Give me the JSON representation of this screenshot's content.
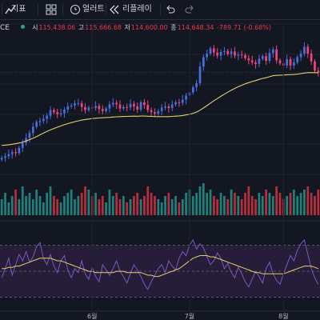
{
  "toolbar": {
    "indicators_label": "지표",
    "alert_label": "얼러트",
    "replay_label": "리플레이"
  },
  "legend": {
    "symbol": "CE",
    "open_label": "시",
    "open": "115,438.06",
    "high_label": "고",
    "high": "115,666.68",
    "low_label": "저",
    "low": "114,600.00",
    "close_label": "종",
    "close": "114,648.34",
    "change": "-789.71 (-0.68%)"
  },
  "colors": {
    "background": "#131722",
    "up": "#26a69a",
    "down": "#f23645",
    "candle_up": "#4a6ee0",
    "candle_down": "#f0467a",
    "ma": "#e6cf6b",
    "rsi": "#7e57c2",
    "rsi_ma": "#e6cf6b",
    "rsi_band": "#2a1f3d",
    "grid": "#1e222d"
  },
  "chart_data": [
    {
      "type": "candlestick",
      "title": "",
      "x_tick_labels": [
        "6월",
        "7월",
        "8월"
      ],
      "price_close": [
        98200,
        98500,
        98900,
        99300,
        99100,
        100100,
        101100,
        102000,
        103000,
        104200,
        105100,
        105300,
        105700,
        106300,
        107400,
        107000,
        106600,
        106800,
        107500,
        108100,
        108300,
        108700,
        108700,
        108000,
        107400,
        107900,
        107800,
        108200,
        107600,
        107200,
        107700,
        108500,
        108800,
        108500,
        107700,
        108000,
        107900,
        108600,
        108100,
        107500,
        108900,
        108400,
        107400,
        107000,
        106700,
        107200,
        107900,
        108100,
        107800,
        108500,
        108900,
        108800,
        109400,
        110200,
        110800,
        111800,
        112600,
        115800,
        117600,
        118300,
        119300,
        118500,
        117900,
        118600,
        118800,
        118200,
        118700,
        117900,
        118100,
        118000,
        117400,
        117000,
        116600,
        116300,
        117300,
        117800,
        116900,
        118400,
        119100,
        117000,
        116400,
        116000,
        117200,
        116000,
        116600,
        117600,
        118300,
        119600,
        118300,
        116800,
        115000,
        114650
      ],
      "ma_line": [
        100600,
        100650,
        100720,
        100820,
        100920,
        101050,
        101230,
        101450,
        101700,
        101980,
        102300,
        102630,
        102960,
        103280,
        103580,
        103850,
        104100,
        104350,
        104580,
        104790,
        104980,
        105160,
        105320,
        105470,
        105580,
        105680,
        105760,
        105830,
        105880,
        105920,
        105960,
        106000,
        106060,
        106110,
        106140,
        106170,
        106190,
        106220,
        106230,
        106220,
        106240,
        106240,
        106220,
        106190,
        106150,
        106130,
        106130,
        106140,
        106140,
        106180,
        106230,
        106280,
        106360,
        106470,
        106590,
        106780,
        107010,
        107390,
        107810,
        108270,
        108750,
        109200,
        109620,
        110050,
        110470,
        110860,
        111250,
        111580,
        111900,
        112190,
        112460,
        112700,
        112910,
        113100,
        113310,
        113510,
        113650,
        113840,
        114030,
        114100,
        114140,
        114160,
        114220,
        114230,
        114260,
        114330,
        114420,
        114540,
        114620,
        114640,
        114620,
        114580
      ],
      "volume": [
        5,
        7,
        4,
        6,
        8,
        5,
        9,
        6,
        7,
        5,
        8,
        6,
        4,
        7,
        9,
        6,
        5,
        4,
        6,
        7,
        8,
        5,
        6,
        7,
        9,
        8,
        6,
        7,
        5,
        6,
        4,
        8,
        6,
        7,
        5,
        6,
        4,
        5,
        6,
        7,
        5,
        6,
        9,
        7,
        6,
        5,
        4,
        6,
        7,
        5,
        6,
        4,
        5,
        7,
        8,
        6,
        7,
        9,
        10,
        7,
        8,
        6,
        5,
        7,
        6,
        5,
        8,
        7,
        6,
        5,
        7,
        9,
        6,
        5,
        7,
        6,
        8,
        7,
        6,
        9,
        7,
        5,
        6,
        7,
        8,
        6,
        7,
        8,
        9,
        7,
        6,
        8
      ],
      "ylim": [
        95000,
        124000
      ]
    },
    {
      "type": "line",
      "title": "",
      "series": [
        {
          "values": [
            45,
            52,
            60,
            47,
            55,
            63,
            58,
            65,
            57,
            61,
            69,
            72,
            60,
            55,
            63,
            54,
            49,
            58,
            62,
            51,
            45,
            52,
            49,
            58,
            48,
            44,
            53,
            46,
            42,
            55,
            51,
            47,
            52,
            58,
            50,
            46,
            41,
            48,
            55,
            51,
            46,
            40,
            36,
            42,
            47,
            52,
            55,
            49,
            58,
            54,
            51,
            60,
            65,
            62,
            70,
            74,
            67,
            71,
            68,
            61,
            55,
            58,
            64,
            60,
            52,
            56,
            49,
            45,
            53,
            48,
            42,
            38,
            44,
            50,
            46,
            41,
            52,
            57,
            48,
            43,
            40,
            48,
            55,
            62,
            58,
            66,
            71,
            74,
            63,
            52,
            45,
            40
          ]
        },
        {
          "values": [
            52,
            52,
            53,
            53,
            54,
            54,
            55,
            56,
            57,
            58,
            59,
            60,
            60,
            60,
            60,
            59,
            58,
            58,
            57,
            56,
            55,
            54,
            53,
            52,
            51,
            50,
            50,
            49,
            49,
            49,
            49,
            49,
            49,
            50,
            50,
            50,
            49,
            49,
            49,
            49,
            49,
            48,
            47,
            47,
            46,
            46,
            47,
            48,
            49,
            50,
            51,
            52,
            54,
            56,
            58,
            60,
            61,
            62,
            62,
            62,
            61,
            61,
            60,
            59,
            58,
            57,
            56,
            55,
            54,
            53,
            52,
            51,
            50,
            49,
            49,
            48,
            48,
            48,
            48,
            48,
            48,
            48,
            49,
            50,
            51,
            52,
            53,
            54,
            54,
            54,
            53,
            52
          ]
        }
      ],
      "ylim": [
        20,
        85
      ]
    }
  ]
}
